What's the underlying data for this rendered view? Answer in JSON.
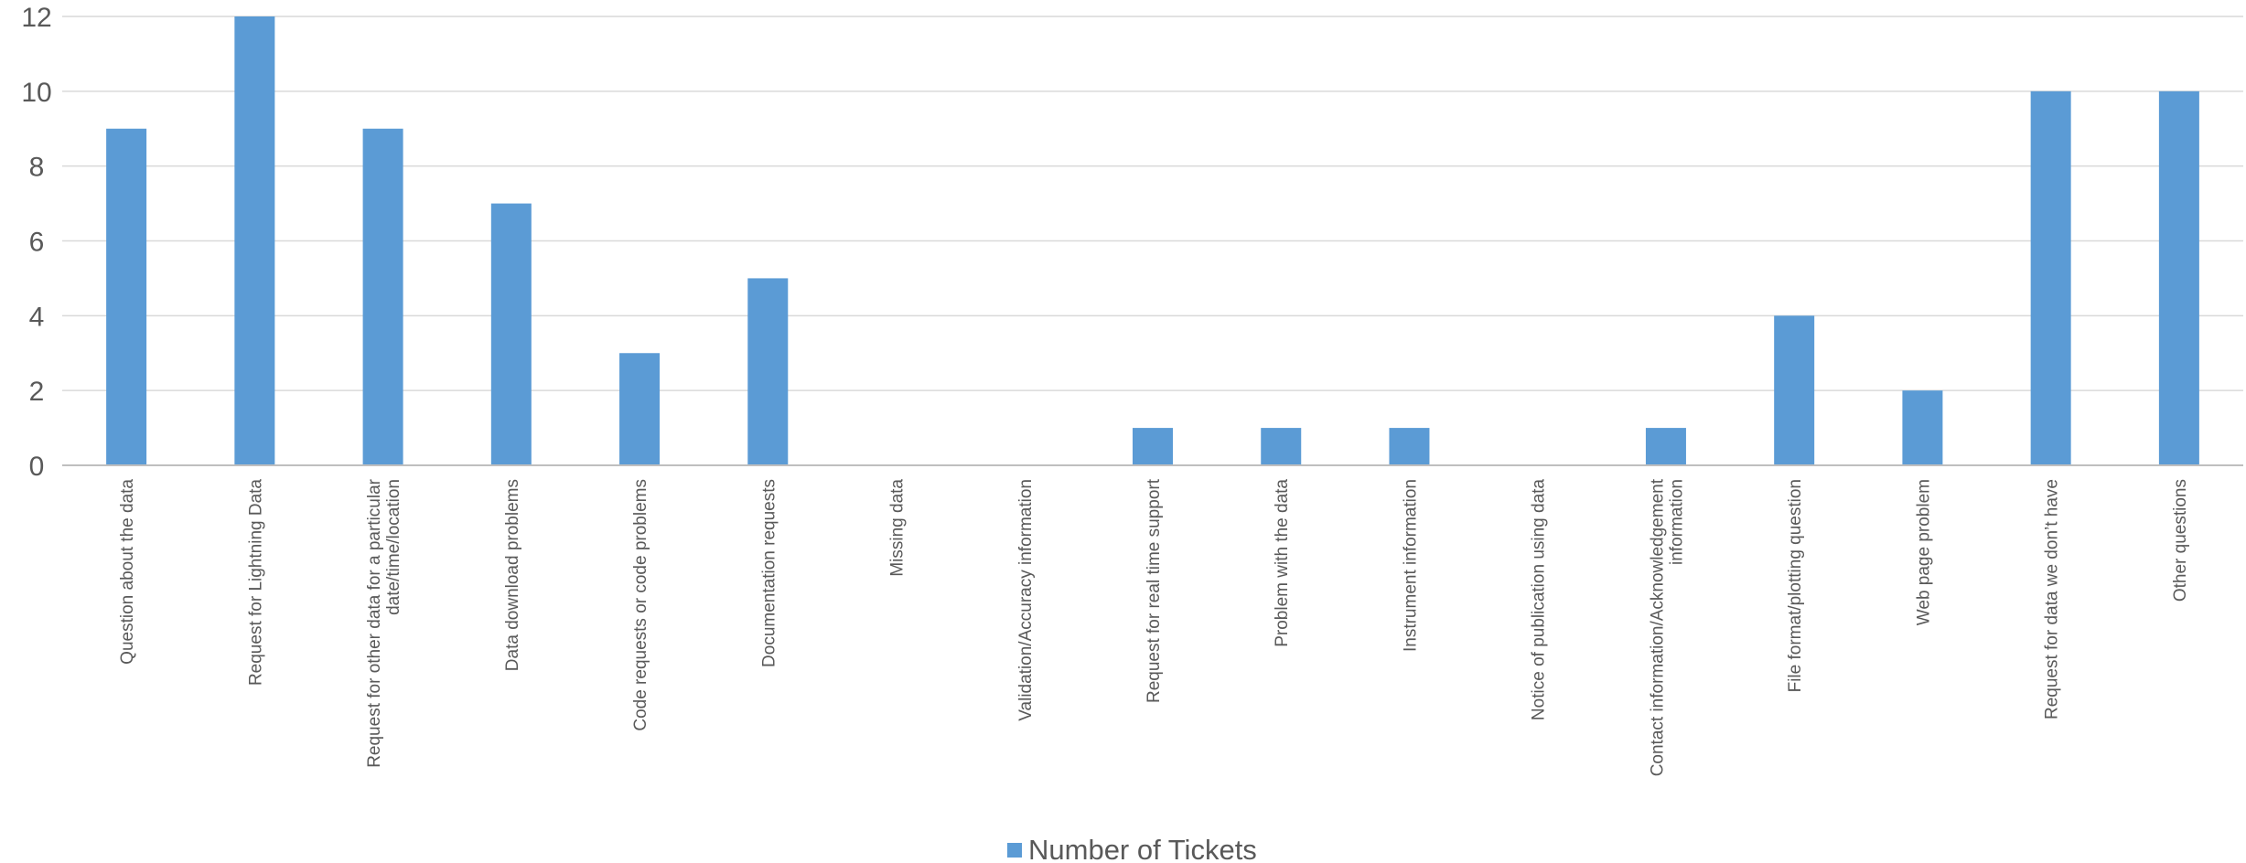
{
  "chart_data": {
    "type": "bar",
    "categories": [
      "Question about the data",
      "Request for Lightning Data",
      "Request for other data for a particular date/time/location",
      "Data download problems",
      "Code requests or code problems",
      "Documentation requests",
      "Missing data",
      "Validation/Accuracy information",
      "Request for real time support",
      "Problem with the data",
      "Instrument information",
      "Notice of publication using data",
      "Contact information/Acknowledgement information",
      "File format/plotting question",
      "Web page problem",
      "Request for data we don't have",
      "Other questions"
    ],
    "category_lines": [
      [
        "Question about the data"
      ],
      [
        "Request for Lightning Data"
      ],
      [
        "Request for other data for a particular",
        "date/time/location"
      ],
      [
        "Data download problems"
      ],
      [
        "Code requests or code problems"
      ],
      [
        "Documentation requests"
      ],
      [
        "Missing data"
      ],
      [
        "Validation/Accuracy information"
      ],
      [
        "Request for real time support"
      ],
      [
        "Problem with the data"
      ],
      [
        "Instrument information"
      ],
      [
        "Notice of publication using data"
      ],
      [
        "Contact information/Acknowledgement",
        "information"
      ],
      [
        "File format/plotting question"
      ],
      [
        "Web page problem"
      ],
      [
        "Request for data we don’t have"
      ],
      [
        "Other questions"
      ]
    ],
    "series": [
      {
        "name": "Number of Tickets",
        "values": [
          9,
          12,
          9,
          7,
          3,
          5,
          0,
          0,
          1,
          1,
          1,
          0,
          1,
          4,
          2,
          10,
          10
        ]
      }
    ],
    "ylim": [
      0,
      12
    ],
    "yticks": [
      "0",
      "2",
      "4",
      "6",
      "8",
      "10",
      "12"
    ],
    "grid": true,
    "legend_position": "bottom",
    "colors": {
      "bar": "#5b9bd5",
      "grid": "#d9d9d9",
      "text": "#595959"
    }
  }
}
